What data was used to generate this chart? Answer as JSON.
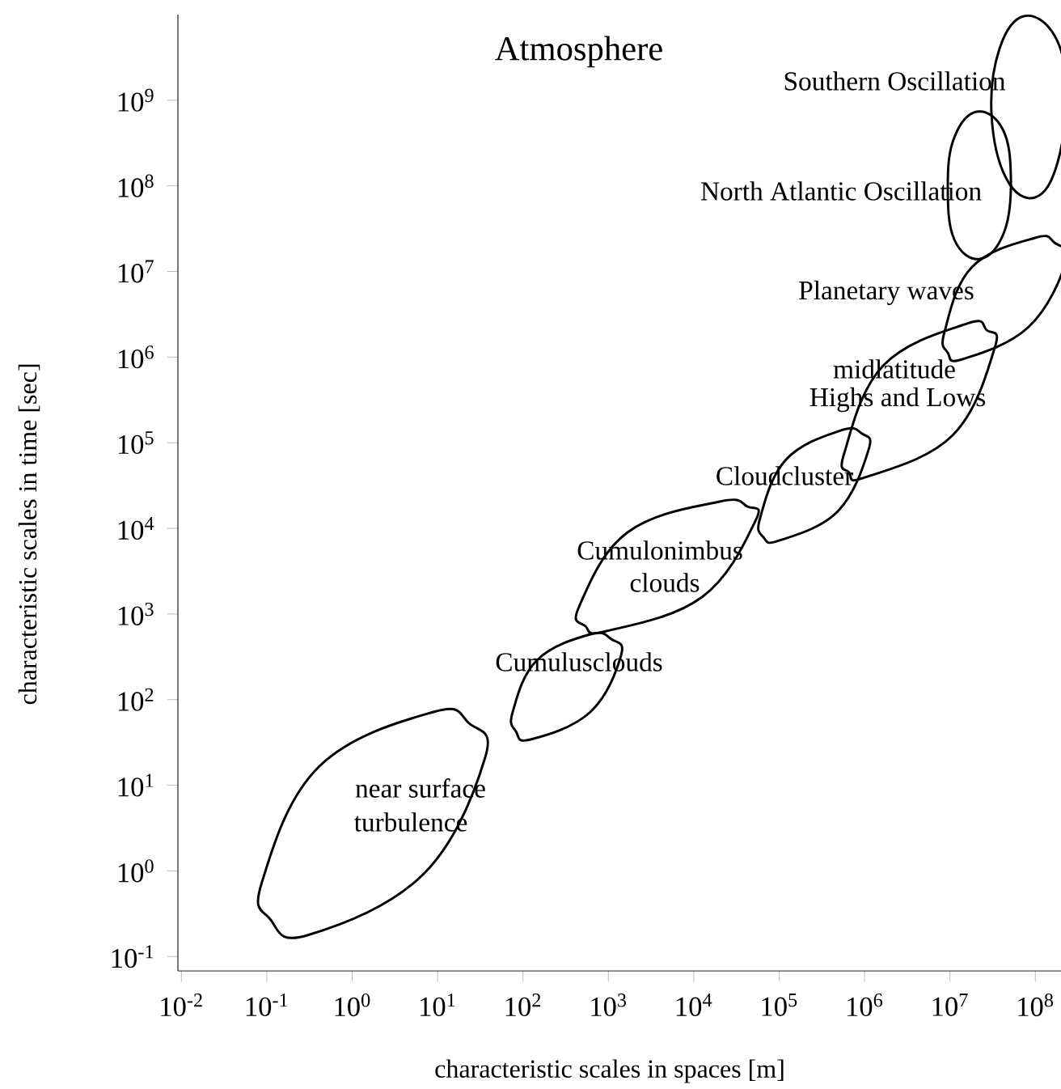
{
  "chart_data": {
    "type": "line",
    "title": "Atmosphere",
    "xlabel": "characteristic scales in spaces [m]",
    "ylabel": "characteristic scales in time [sec]",
    "log": "xy",
    "xlim": [
      0.0091,
      200000000.0
    ],
    "ylim": [
      0.068,
      10000000000.0
    ],
    "xticks": [
      {
        "value": 0.01,
        "label": "10$^{-2}$"
      },
      {
        "value": 0.1,
        "label": "10$^{-1}$"
      },
      {
        "value": 1,
        "label": "10$^{0}$"
      },
      {
        "value": 10,
        "label": "10$^{1}$"
      },
      {
        "value": 100,
        "label": "10$^{2}$"
      },
      {
        "value": 1000,
        "label": "10$^{3}$"
      },
      {
        "value": 10000,
        "label": "10$^{4}$"
      },
      {
        "value": 100000,
        "label": "10$^{5}$"
      },
      {
        "value": 1000000,
        "label": "10$^{6}$"
      },
      {
        "value": 10000000,
        "label": "10$^{7}$"
      },
      {
        "value": 100000000,
        "label": "10$^{8}$"
      }
    ],
    "yticks": [
      {
        "value": 0.1,
        "label": "10$^{-1}$"
      },
      {
        "value": 1,
        "label": "10$^{0}$"
      },
      {
        "value": 10,
        "label": "10$^{1}$"
      },
      {
        "value": 100,
        "label": "10$^{2}$"
      },
      {
        "value": 1000,
        "label": "10$^{3}$"
      },
      {
        "value": 10000,
        "label": "10$^{4}$"
      },
      {
        "value": 100000,
        "label": "10$^{5}$"
      },
      {
        "value": 1000000,
        "label": "10$^{6}$"
      },
      {
        "value": 10000000,
        "label": "10$^{7}$"
      },
      {
        "value": 100000000,
        "label": "10$^{8}$"
      },
      {
        "value": 1000000000,
        "label": "10$^{9}$"
      }
    ],
    "annotations": [
      "Southern Oscillation",
      "North Atlantic Oscillation",
      "Planetary waves",
      "midlatitude",
      "Highs and Lows",
      "Cloudcluster",
      "Cumulonimbus",
      "clouds",
      "Cumulusclouds",
      "near surface",
      "turbulence"
    ]
  }
}
